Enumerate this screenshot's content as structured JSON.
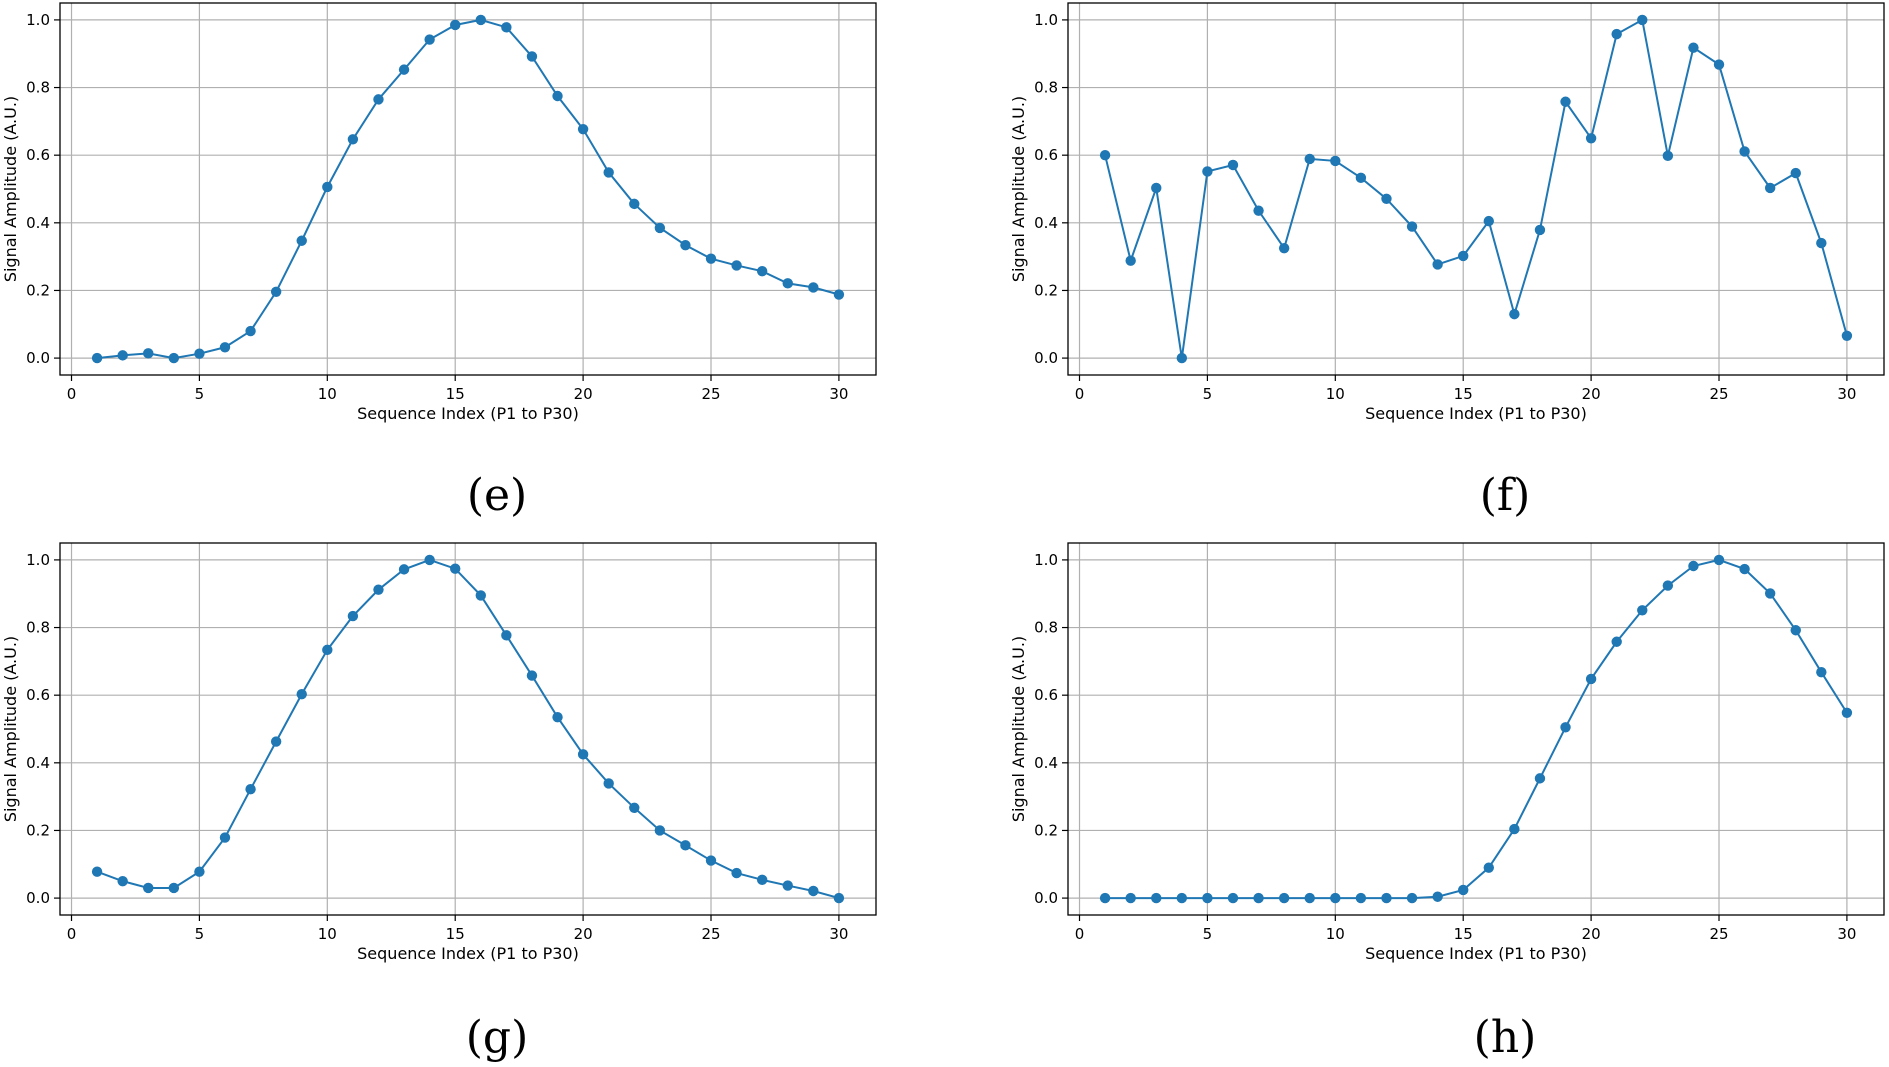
{
  "colors": {
    "series": "#1f77b4",
    "grid": "#b0b0b0",
    "axis": "#000000"
  },
  "chart_data": [
    {
      "type": "line",
      "panel_label": "(e)",
      "xlabel": "Sequence Index (P1 to P30)",
      "ylabel": "Signal Amplitude (A.U.)",
      "xlim": [
        -0.45,
        31.45
      ],
      "ylim": [
        -0.05,
        1.05
      ],
      "xticks": [
        0,
        5,
        10,
        15,
        20,
        25,
        30
      ],
      "yticks": [
        "0.0",
        "0.2",
        "0.4",
        "0.6",
        "0.8",
        "1.0"
      ],
      "grid": true,
      "x": [
        1,
        2,
        3,
        4,
        5,
        6,
        7,
        8,
        9,
        10,
        11,
        12,
        13,
        14,
        15,
        16,
        17,
        18,
        19,
        20,
        21,
        22,
        23,
        24,
        25,
        26,
        27,
        28,
        29,
        30
      ],
      "values": [
        0.0,
        0.008,
        0.014,
        0.0,
        0.013,
        0.032,
        0.08,
        0.196,
        0.347,
        0.506,
        0.647,
        0.765,
        0.853,
        0.942,
        0.985,
        1.0,
        0.978,
        0.892,
        0.775,
        0.677,
        0.549,
        0.456,
        0.385,
        0.334,
        0.294,
        0.274,
        0.257,
        0.221,
        0.209,
        0.188
      ]
    },
    {
      "type": "line",
      "panel_label": "(f)",
      "xlabel": "Sequence Index (P1 to P30)",
      "ylabel": "Signal Amplitude (A.U.)",
      "xlim": [
        -0.45,
        31.45
      ],
      "ylim": [
        -0.05,
        1.05
      ],
      "xticks": [
        0,
        5,
        10,
        15,
        20,
        25,
        30
      ],
      "yticks": [
        "0.0",
        "0.2",
        "0.4",
        "0.6",
        "0.8",
        "1.0"
      ],
      "grid": true,
      "x": [
        1,
        2,
        3,
        4,
        5,
        6,
        7,
        8,
        9,
        10,
        11,
        12,
        13,
        14,
        15,
        16,
        17,
        18,
        19,
        20,
        21,
        22,
        23,
        24,
        25,
        26,
        27,
        28,
        29,
        30
      ],
      "values": [
        0.6,
        0.288,
        0.503,
        0.0,
        0.552,
        0.571,
        0.436,
        0.325,
        0.589,
        0.583,
        0.533,
        0.471,
        0.389,
        0.277,
        0.302,
        0.405,
        0.13,
        0.379,
        0.758,
        0.65,
        0.958,
        1.0,
        0.598,
        0.918,
        0.868,
        0.611,
        0.503,
        0.547,
        0.34,
        0.066
      ]
    },
    {
      "type": "line",
      "panel_label": "(g)",
      "xlabel": "Sequence Index (P1 to P30)",
      "ylabel": "Signal Amplitude (A.U.)",
      "xlim": [
        -0.45,
        31.45
      ],
      "ylim": [
        -0.05,
        1.05
      ],
      "xticks": [
        0,
        5,
        10,
        15,
        20,
        25,
        30
      ],
      "yticks": [
        "0.0",
        "0.2",
        "0.4",
        "0.6",
        "0.8",
        "1.0"
      ],
      "grid": true,
      "x": [
        1,
        2,
        3,
        4,
        5,
        6,
        7,
        8,
        9,
        10,
        11,
        12,
        13,
        14,
        15,
        16,
        17,
        18,
        19,
        20,
        21,
        22,
        23,
        24,
        25,
        26,
        27,
        28,
        29,
        30
      ],
      "values": [
        0.078,
        0.05,
        0.03,
        0.03,
        0.078,
        0.179,
        0.322,
        0.463,
        0.603,
        0.734,
        0.834,
        0.912,
        0.972,
        1.0,
        0.974,
        0.895,
        0.777,
        0.658,
        0.535,
        0.425,
        0.339,
        0.267,
        0.2,
        0.156,
        0.111,
        0.074,
        0.054,
        0.037,
        0.021,
        0.0
      ]
    },
    {
      "type": "line",
      "panel_label": "(h)",
      "xlabel": "Sequence Index (P1 to P30)",
      "ylabel": "Signal Amplitude (A.U.)",
      "xlim": [
        -0.45,
        31.45
      ],
      "ylim": [
        -0.05,
        1.05
      ],
      "xticks": [
        0,
        5,
        10,
        15,
        20,
        25,
        30
      ],
      "yticks": [
        "0.0",
        "0.2",
        "0.4",
        "0.6",
        "0.8",
        "1.0"
      ],
      "grid": true,
      "x": [
        1,
        2,
        3,
        4,
        5,
        6,
        7,
        8,
        9,
        10,
        11,
        12,
        13,
        14,
        15,
        16,
        17,
        18,
        19,
        20,
        21,
        22,
        23,
        24,
        25,
        26,
        27,
        28,
        29,
        30
      ],
      "values": [
        0.0,
        0.0,
        0.0,
        0.0,
        0.0,
        0.0,
        0.0,
        0.0,
        0.0,
        0.0,
        0.0,
        0.0,
        0.0,
        0.004,
        0.024,
        0.09,
        0.204,
        0.354,
        0.505,
        0.648,
        0.758,
        0.851,
        0.924,
        0.982,
        1.0,
        0.973,
        0.901,
        0.792,
        0.668,
        0.548
      ]
    }
  ]
}
